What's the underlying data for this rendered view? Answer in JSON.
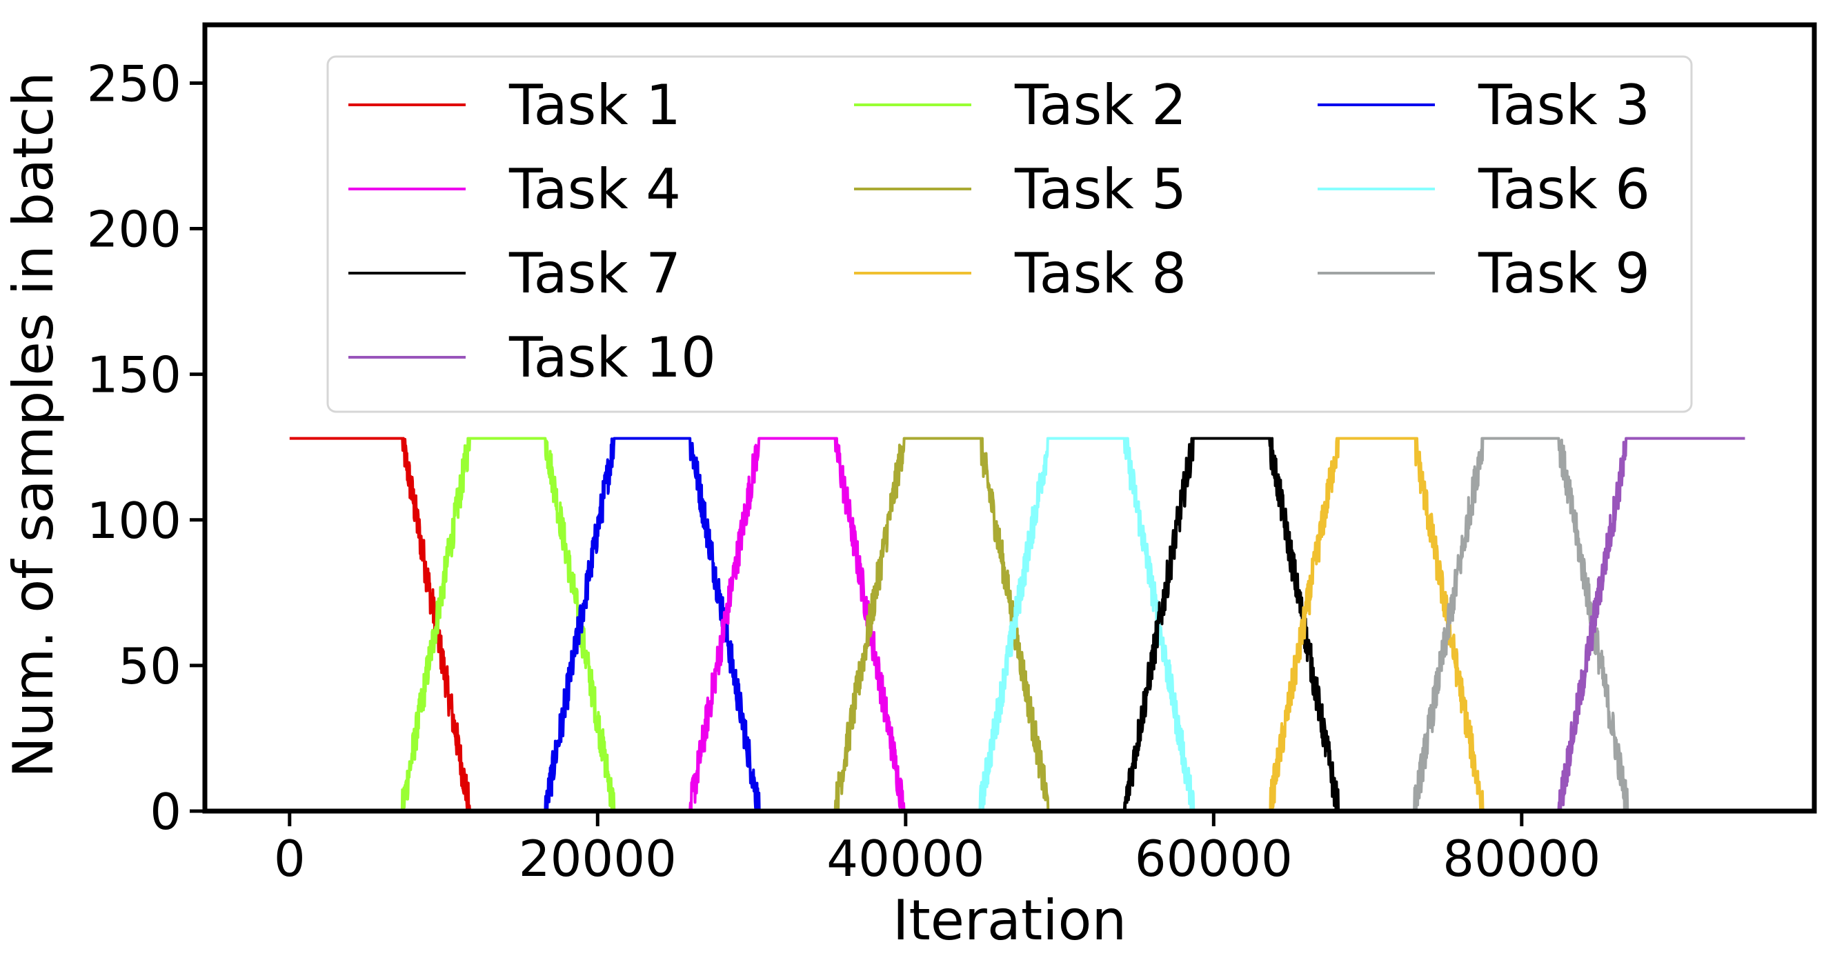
{
  "chart_data": {
    "type": "line",
    "title": "",
    "xlabel": "Iteration",
    "ylabel": "Num. of samples in batch",
    "xlim": [
      -5500,
      99000
    ],
    "ylim": [
      0,
      270
    ],
    "xticks": [
      0,
      20000,
      40000,
      60000,
      80000
    ],
    "xtick_labels": [
      "0",
      "20000",
      "40000",
      "60000",
      "80000"
    ],
    "yticks": [
      0,
      50,
      100,
      150,
      200,
      250
    ],
    "ytick_labels": [
      "0",
      "50",
      "100",
      "150",
      "200",
      "250"
    ],
    "grid": false,
    "legend": {
      "placement": "top-center",
      "columns": 3
    },
    "batch_size": 128,
    "series": [
      {
        "name": "Task 1",
        "color": "#e00000",
        "x": [
          0,
          7300,
          11700
        ],
        "y": [
          128,
          128,
          0
        ]
      },
      {
        "name": "Task 2",
        "color": "#99ff33",
        "x": [
          7300,
          11700,
          16600,
          21100
        ],
        "y": [
          0,
          128,
          128,
          0
        ]
      },
      {
        "name": "Task 3",
        "color": "#0000ee",
        "x": [
          16600,
          21100,
          26000,
          30500
        ],
        "y": [
          0,
          128,
          128,
          0
        ]
      },
      {
        "name": "Task 4",
        "color": "#ee00ee",
        "x": [
          26000,
          30500,
          35400,
          39900
        ],
        "y": [
          0,
          128,
          128,
          0
        ]
      },
      {
        "name": "Task 5",
        "color": "#aaaa33",
        "x": [
          35400,
          39900,
          44800,
          49300
        ],
        "y": [
          0,
          128,
          128,
          0
        ]
      },
      {
        "name": "Task 6",
        "color": "#88ffff",
        "x": [
          44800,
          49300,
          54200,
          58700
        ],
        "y": [
          0,
          128,
          128,
          0
        ]
      },
      {
        "name": "Task 7",
        "color": "#000000",
        "x": [
          54200,
          58700,
          63600,
          68100
        ],
        "y": [
          0,
          128,
          128,
          0
        ]
      },
      {
        "name": "Task 8",
        "color": "#f0c030",
        "x": [
          63600,
          68100,
          73000,
          77500
        ],
        "y": [
          0,
          128,
          128,
          0
        ]
      },
      {
        "name": "Task 9",
        "color": "#a0a4a4",
        "x": [
          73000,
          77500,
          82400,
          86900
        ],
        "y": [
          0,
          128,
          128,
          0
        ]
      },
      {
        "name": "Task 10",
        "color": "#9955bb",
        "x": [
          82400,
          86900,
          94500
        ],
        "y": [
          0,
          128,
          128
        ]
      }
    ]
  }
}
